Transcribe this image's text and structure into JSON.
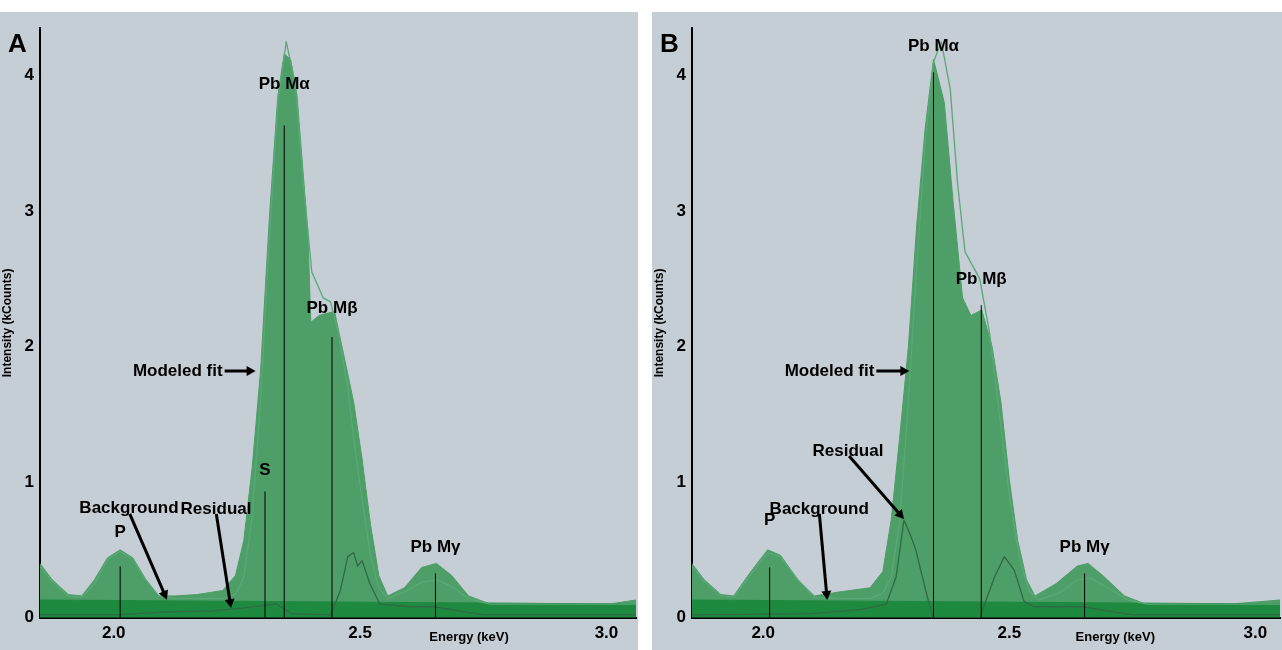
{
  "chart_data": [
    {
      "type": "area",
      "title": "A",
      "xlabel": "Energy (keV)",
      "ylabel": "Intensity (kCounts)",
      "xlim": [
        1.85,
        3.06
      ],
      "ylim": [
        0,
        4.35
      ],
      "xticks": [
        {
          "value": 2,
          "label": "2.0"
        },
        {
          "value": 2.5,
          "label": "2.5"
        },
        {
          "value": 3,
          "label": "3.0"
        }
      ],
      "yticks": [
        0,
        1,
        2,
        3,
        4
      ],
      "grid": false,
      "legend": false,
      "series": [
        {
          "type": "area",
          "color": "#4e9e68",
          "x": [
            1.85,
            1.875,
            1.908,
            1.935,
            1.961,
            1.987,
            2.013,
            2.039,
            2.065,
            2.091,
            2.125,
            2.169,
            2.221,
            2.247,
            2.264,
            2.281,
            2.298,
            2.316,
            2.333,
            2.346,
            2.359,
            2.372,
            2.394,
            2.4,
            2.417,
            2.448,
            2.465,
            2.487,
            2.504,
            2.521,
            2.538,
            2.556,
            2.59,
            2.625,
            2.655,
            2.686,
            2.72,
            2.764,
            2.833,
            2.919,
            3.006,
            3.06
          ],
          "values": [
            0.4,
            0.28,
            0.17,
            0.16,
            0.28,
            0.44,
            0.5,
            0.44,
            0.28,
            0.16,
            0.16,
            0.17,
            0.2,
            0.31,
            0.57,
            1.11,
            1.82,
            2.96,
            3.85,
            4.16,
            4.12,
            3.85,
            2.84,
            2.18,
            2.23,
            2.26,
            1.97,
            1.59,
            1.17,
            0.69,
            0.31,
            0.16,
            0.22,
            0.37,
            0.4,
            0.31,
            0.16,
            0.1,
            0.1,
            0.1,
            0.1,
            0.13
          ]
        },
        {
          "type": "area",
          "color": "#1e8a40",
          "x": [
            1.85,
            3.06
          ],
          "values": [
            0.13,
            0.1
          ]
        },
        {
          "type": "line",
          "color": "#5aa878",
          "x": [
            1.85,
            1.875,
            1.908,
            1.935,
            1.961,
            1.987,
            2.013,
            2.039,
            2.065,
            2.091,
            2.125,
            2.169,
            2.221,
            2.247,
            2.264,
            2.281,
            2.298,
            2.316,
            2.333,
            2.35,
            2.368,
            2.385,
            2.402,
            2.425,
            2.44,
            2.456,
            2.475,
            2.487,
            2.504,
            2.521,
            2.538,
            2.556,
            2.59,
            2.625,
            2.655,
            2.686,
            2.72,
            2.764,
            3.06
          ],
          "values": [
            0.38,
            0.27,
            0.16,
            0.15,
            0.25,
            0.43,
            0.49,
            0.43,
            0.28,
            0.16,
            0.14,
            0.14,
            0.14,
            0.17,
            0.3,
            0.75,
            1.6,
            2.8,
            3.8,
            4.25,
            3.95,
            3.2,
            2.55,
            2.36,
            2.33,
            2.1,
            1.7,
            1.32,
            0.87,
            0.46,
            0.22,
            0.14,
            0.19,
            0.26,
            0.28,
            0.23,
            0.14,
            0.1,
            0.1
          ]
        },
        {
          "type": "line",
          "color": "#2f6a42",
          "x": [
            1.85,
            2.0,
            2.1,
            2.2,
            2.26,
            2.33,
            2.36,
            2.44,
            2.46,
            2.475,
            2.487,
            2.495,
            2.504,
            2.52,
            2.54,
            2.6,
            2.65,
            2.7,
            2.75,
            3.06
          ],
          "values": [
            0.02,
            0.02,
            0.04,
            0.05,
            0.07,
            0.1,
            0.03,
            0.02,
            0.2,
            0.45,
            0.48,
            0.38,
            0.42,
            0.25,
            0.1,
            0.08,
            0.08,
            0.05,
            0.02,
            0.02
          ]
        }
      ],
      "ref_lines": [
        {
          "axis": "x",
          "value": 2.013,
          "label": "P"
        },
        {
          "axis": "x",
          "value": 2.307,
          "label": "S"
        },
        {
          "axis": "x",
          "value": 2.346,
          "label": "Pb Mα"
        },
        {
          "axis": "x",
          "value": 2.443,
          "label": "Pb Mβ"
        },
        {
          "axis": "x",
          "value": 2.653,
          "label": "Pb Mγ"
        }
      ],
      "annotations": [
        {
          "text": "Modeled fit",
          "x": 2.29,
          "y": 1.82
        },
        {
          "text": "Residual",
          "x": 2.238,
          "y": 0.063
        },
        {
          "text": "Background",
          "x": 2.108,
          "y": 0.124
        }
      ]
    },
    {
      "type": "area",
      "title": "B",
      "xlabel": "Energy (keV)",
      "ylabel": "Intensity (kCounts)",
      "xlim": [
        1.855,
        3.05
      ],
      "ylim": [
        0,
        4.35
      ],
      "xticks": [
        {
          "value": 2,
          "label": "2.0"
        },
        {
          "value": 2.5,
          "label": "2.5"
        },
        {
          "value": 3,
          "label": "3.0"
        }
      ],
      "yticks": [
        0,
        1,
        2,
        3,
        4
      ],
      "grid": false,
      "legend": false,
      "series": [
        {
          "type": "area",
          "color": "#4e9e68",
          "x": [
            1.855,
            1.88,
            1.914,
            1.94,
            1.975,
            2.009,
            2.035,
            2.07,
            2.104,
            2.156,
            2.217,
            2.243,
            2.26,
            2.277,
            2.295,
            2.312,
            2.329,
            2.346,
            2.368,
            2.385,
            2.405,
            2.422,
            2.444,
            2.465,
            2.483,
            2.5,
            2.517,
            2.535,
            2.552,
            2.595,
            2.638,
            2.66,
            2.69,
            2.734,
            2.777,
            2.863,
            2.95,
            3.05
          ],
          "values": [
            0.4,
            0.28,
            0.17,
            0.16,
            0.34,
            0.5,
            0.46,
            0.28,
            0.16,
            0.19,
            0.22,
            0.34,
            0.72,
            1.32,
            2.0,
            2.9,
            3.61,
            4.12,
            3.8,
            3.1,
            2.36,
            2.23,
            2.27,
            2.0,
            1.59,
            1.02,
            0.57,
            0.28,
            0.16,
            0.25,
            0.38,
            0.4,
            0.31,
            0.16,
            0.1,
            0.1,
            0.1,
            0.13
          ]
        },
        {
          "type": "area",
          "color": "#1e8a40",
          "x": [
            1.855,
            3.05
          ],
          "values": [
            0.13,
            0.1
          ]
        },
        {
          "type": "line",
          "color": "#5aa878",
          "x": [
            1.855,
            1.88,
            1.914,
            1.94,
            1.975,
            2.009,
            2.035,
            2.07,
            2.104,
            2.156,
            2.217,
            2.243,
            2.26,
            2.277,
            2.295,
            2.312,
            2.329,
            2.346,
            2.362,
            2.38,
            2.395,
            2.41,
            2.425,
            2.44,
            2.46,
            2.48,
            2.5,
            2.52,
            2.54,
            2.56,
            2.6,
            2.64,
            2.665,
            2.7,
            2.74,
            2.78,
            3.05
          ],
          "values": [
            0.38,
            0.27,
            0.16,
            0.15,
            0.32,
            0.48,
            0.45,
            0.28,
            0.15,
            0.14,
            0.14,
            0.18,
            0.3,
            0.7,
            1.6,
            2.6,
            3.5,
            4.1,
            4.25,
            3.9,
            3.2,
            2.7,
            2.6,
            2.5,
            2.1,
            1.5,
            0.9,
            0.45,
            0.2,
            0.13,
            0.18,
            0.28,
            0.29,
            0.22,
            0.13,
            0.1,
            0.1
          ]
        },
        {
          "type": "line",
          "color": "#2f6a42",
          "x": [
            1.855,
            2.1,
            2.2,
            2.25,
            2.27,
            2.286,
            2.3,
            2.31,
            2.33,
            2.345,
            2.44,
            2.47,
            2.49,
            2.51,
            2.53,
            2.55,
            2.65,
            2.7,
            2.75,
            3.05
          ],
          "values": [
            0.02,
            0.03,
            0.06,
            0.1,
            0.3,
            0.72,
            0.6,
            0.5,
            0.2,
            0,
            0,
            0.3,
            0.45,
            0.35,
            0.12,
            0.08,
            0.08,
            0.05,
            0.02,
            0.02
          ]
        }
      ],
      "ref_lines": [
        {
          "axis": "x",
          "value": 2.013,
          "label": "P"
        },
        {
          "axis": "x",
          "value": 2.346,
          "label": "Pb Mα"
        },
        {
          "axis": "x",
          "value": 2.443,
          "label": "Pb Mβ"
        },
        {
          "axis": "x",
          "value": 2.653,
          "label": "Pb Mγ"
        }
      ],
      "annotations": [
        {
          "text": "Modeled fit",
          "x": 2.299,
          "y": 1.82
        },
        {
          "text": "Residual",
          "x": 2.286,
          "y": 0.72
        },
        {
          "text": "Background",
          "x": 2.13,
          "y": 0.123
        }
      ]
    }
  ]
}
